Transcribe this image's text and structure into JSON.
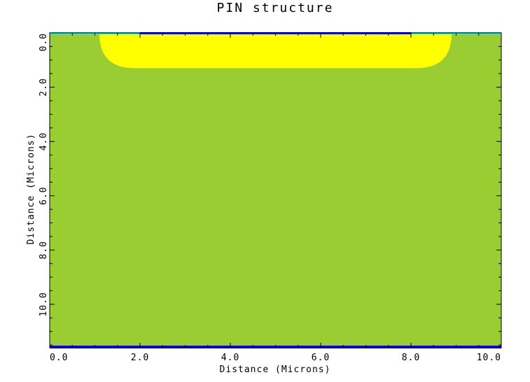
{
  "title": "PIN structure",
  "x_axis": {
    "label": "Distance (Microns)",
    "range": [
      0,
      10
    ],
    "tick_labels": [
      "0.0",
      "2.0",
      "4.0",
      "6.0",
      "8.0",
      "10.0"
    ]
  },
  "y_axis": {
    "label": "Distance (Microns)",
    "range": [
      0,
      11.6
    ],
    "tick_labels": [
      "0.0",
      "2.0",
      "4.0",
      "6.0",
      "8.0",
      "10.0"
    ]
  },
  "regions": [
    {
      "name": "silicon-substrate",
      "color": "#9ACD32"
    },
    {
      "name": "p-plus-well",
      "color": "#FFFF00",
      "x_start": 1.1,
      "x_end": 8.9,
      "depth": 1.3
    },
    {
      "name": "top-oxide",
      "color": "#40E0D0"
    },
    {
      "name": "top-contact",
      "color": "#0000FF",
      "x_start": 2.0,
      "x_end": 8.0
    },
    {
      "name": "bottom-contact",
      "color": "#0000FF"
    }
  ],
  "colors": {
    "axis": "#000000",
    "background": "#FFFFFF"
  }
}
